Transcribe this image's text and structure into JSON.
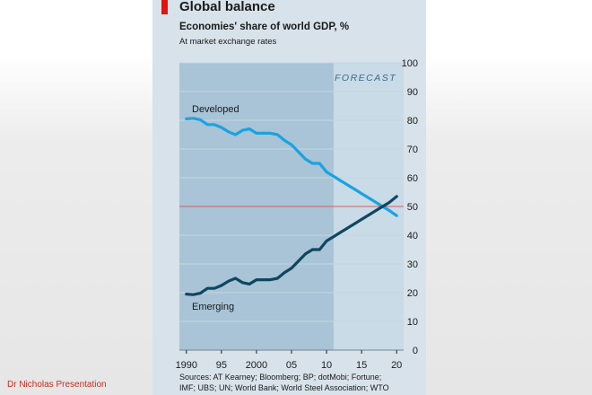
{
  "chart_data": {
    "type": "line",
    "title": "Global balance",
    "subtitle": "Economies' share of world GDP, %",
    "note": "At market exchange rates",
    "xlabel": "",
    "ylabel": "",
    "xlim": [
      1989,
      2021
    ],
    "ylim": [
      0,
      100
    ],
    "y_ticks": [
      0,
      10,
      20,
      30,
      40,
      50,
      60,
      70,
      80,
      90,
      100
    ],
    "x_tick_labels": [
      {
        "value": 1990,
        "label": "1990"
      },
      {
        "value": 1995,
        "label": "95"
      },
      {
        "value": 2000,
        "label": "2000"
      },
      {
        "value": 2005,
        "label": "05"
      },
      {
        "value": 2010,
        "label": "10"
      },
      {
        "value": 2015,
        "label": "15"
      },
      {
        "value": 2020,
        "label": "20"
      }
    ],
    "forecast_start": 2011,
    "forecast_label": "FORECAST",
    "reference_line": 50,
    "series": [
      {
        "name": "Developed",
        "color": "#1aa3e0",
        "x": [
          1990,
          1991,
          1992,
          1993,
          1994,
          1995,
          1996,
          1997,
          1998,
          1999,
          2000,
          2001,
          2002,
          2003,
          2004,
          2005,
          2006,
          2007,
          2008,
          2009,
          2010,
          2011,
          2012,
          2013,
          2014,
          2015,
          2016,
          2017,
          2018,
          2019,
          2020
        ],
        "values": [
          80.5,
          80.7,
          80.2,
          78.5,
          78.5,
          77.5,
          76.0,
          75.0,
          76.5,
          77.0,
          75.5,
          75.5,
          75.5,
          75.0,
          73.0,
          71.5,
          69.0,
          66.5,
          65.0,
          65.0,
          62.0,
          60.5,
          59.0,
          57.5,
          56.0,
          54.5,
          53.0,
          51.5,
          50.0,
          48.5,
          46.8
        ]
      },
      {
        "name": "Emerging",
        "color": "#0f4660",
        "x": [
          1990,
          1991,
          1992,
          1993,
          1994,
          1995,
          1996,
          1997,
          1998,
          1999,
          2000,
          2001,
          2002,
          2003,
          2004,
          2005,
          2006,
          2007,
          2008,
          2009,
          2010,
          2011,
          2012,
          2013,
          2014,
          2015,
          2016,
          2017,
          2018,
          2019,
          2020
        ],
        "values": [
          19.5,
          19.3,
          19.8,
          21.5,
          21.5,
          22.5,
          24.0,
          25.0,
          23.5,
          23.0,
          24.5,
          24.5,
          24.5,
          25.0,
          27.0,
          28.5,
          31.0,
          33.5,
          35.0,
          35.0,
          38.0,
          39.5,
          41.0,
          42.5,
          44.0,
          45.5,
          47.0,
          48.5,
          50.0,
          51.5,
          53.5
        ]
      }
    ]
  },
  "sources_line1": "Sources: AT Kearney; Bloomberg; BP; dotMobi; Fortune;",
  "sources_line2": "IMF; UBS; UN; World Bank; World Steel Association; WTO",
  "credit": "Dr Nicholas Presentation",
  "colors": {
    "plot_bg": "#a8c4d6",
    "forecast_bg": "#c8dbe6",
    "grid": "#c2d6e2",
    "reference": "#e05a5a"
  }
}
